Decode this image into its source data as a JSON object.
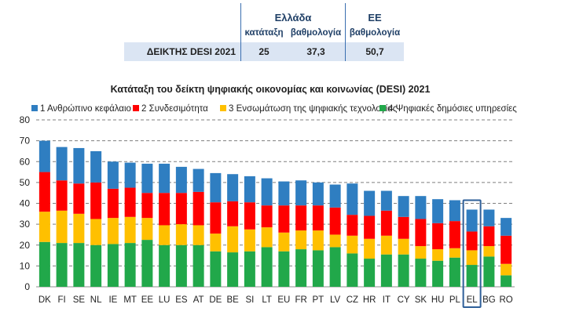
{
  "table": {
    "group_country": "Ελλάδα",
    "group_eu": "ΕΕ",
    "col_rank": "κατάταξη",
    "col_score": "βαθμολογία",
    "col_eu_score": "βαθμολογία",
    "row_label": "ΔΕΙΚΤΗΣ DESI 2021",
    "rank": "25",
    "score": "37,3",
    "eu_score": "50,7"
  },
  "chart_data": {
    "type": "bar",
    "stacked": true,
    "title": "Κατάταξη του δείκτη ψηφιακής οικονομίας και κοινωνίας (DESI) 2021",
    "categories": [
      "DK",
      "FI",
      "SE",
      "NL",
      "IE",
      "MT",
      "EE",
      "LU",
      "ES",
      "AT",
      "DE",
      "BE",
      "SI",
      "LT",
      "EU",
      "FR",
      "PT",
      "LV",
      "CZ",
      "HR",
      "IT",
      "CY",
      "SK",
      "HU",
      "PL",
      "EL",
      "BG",
      "RO"
    ],
    "series": [
      {
        "name": "4 Ψηφιακές δημόσιες υπηρεσίες",
        "color": "#21a84a",
        "values": [
          21.5,
          21,
          21,
          20,
          20.5,
          21,
          22.5,
          20,
          20,
          20,
          17,
          16.5,
          17,
          19,
          17,
          18,
          17.5,
          19,
          16,
          13.5,
          15.5,
          15.5,
          13.5,
          12.5,
          14,
          10.5,
          14.5,
          5.5
        ]
      },
      {
        "name": "3 Ενσωμάτωση της ψηφιακής τεχνολογίας",
        "color": "#ffc000",
        "values": [
          14.5,
          15.5,
          14,
          12.5,
          12.5,
          12.5,
          10.5,
          9.5,
          10,
          9.5,
          8.5,
          12.5,
          10.5,
          9.5,
          9,
          9,
          9.5,
          6,
          8.5,
          9.5,
          9,
          7.5,
          6,
          5.5,
          4.5,
          7,
          5,
          5.5
        ]
      },
      {
        "name": "2 Συνδεσιμότητα",
        "color": "#ff0000",
        "values": [
          19,
          14.5,
          14.5,
          17.5,
          14,
          14,
          12,
          15.5,
          15,
          16,
          15,
          12,
          13,
          10.5,
          13,
          12,
          12,
          13,
          10,
          11,
          12,
          10.5,
          13,
          12.5,
          13,
          9,
          9.5,
          13.5
        ]
      },
      {
        "name": "1 Ανθρώπινο κεφάλαιο",
        "color": "#2f7ec1",
        "values": [
          15,
          16,
          17,
          15,
          13,
          12,
          14,
          14,
          12.5,
          11,
          14,
          13,
          12.5,
          13,
          11.5,
          12,
          11,
          11,
          15,
          12,
          9.5,
          10,
          11,
          11.5,
          10,
          10.5,
          8,
          8.5
        ]
      }
    ],
    "ylim": [
      0,
      80
    ],
    "yticks": [
      "0",
      "10",
      "20",
      "30",
      "40",
      "50",
      "60",
      "70",
      "80"
    ],
    "grid": true,
    "legend_position": "top",
    "highlight_category": "EL",
    "highlight_color": "#2e5f99"
  }
}
